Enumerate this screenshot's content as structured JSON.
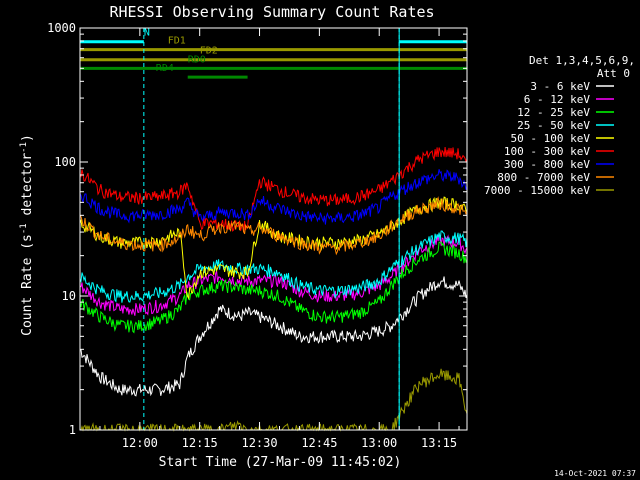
{
  "chart_data": {
    "type": "line",
    "title": "RHESSI Observing Summary Count Rates",
    "xlabel": "Start Time (27-Mar-09 11:45:02)",
    "ylabel": "Count Rate (s⁻¹ detector⁻¹)",
    "ylabel_parts": {
      "base": "Count Rate (s",
      "exp1": "-1",
      "mid": " detector",
      "exp2": "-1",
      "end": ")"
    },
    "y_scale": "log",
    "ylim": [
      1,
      1000
    ],
    "xlim_minutes": [
      0,
      97
    ],
    "x_ticks": [
      {
        "minutes": 15,
        "label": "12:00"
      },
      {
        "minutes": 30,
        "label": "12:15"
      },
      {
        "minutes": 45,
        "label": "12:30"
      },
      {
        "minutes": 60,
        "label": "12:45"
      },
      {
        "minutes": 75,
        "label": "13:00"
      },
      {
        "minutes": 90,
        "label": "13:15"
      }
    ],
    "y_ticks": [
      {
        "value": 1,
        "label": "1"
      },
      {
        "value": 10,
        "label": "10"
      },
      {
        "value": 100,
        "label": "100"
      },
      {
        "value": 1000,
        "label": "1000"
      }
    ],
    "legend_header": [
      "Det 1,3,4,5,6,9,",
      "Att 0"
    ],
    "legend_position": "right",
    "timestamp": "14-Oct-2021 07:37",
    "flags": [
      {
        "label": "N",
        "color": "#00ffff",
        "segments": [
          [
            0,
            16
          ],
          [
            80,
            97
          ]
        ],
        "value": 790
      },
      {
        "label": "FD1",
        "color": "#999900",
        "segments": [
          [
            0,
            97
          ]
        ],
        "value": 690
      },
      {
        "label": "FD2",
        "color": "#999900",
        "segments": [
          [
            0,
            97
          ]
        ],
        "value": 580
      },
      {
        "label": "RD0",
        "color": "#008800",
        "segments": [
          [
            0,
            97
          ]
        ],
        "value": 500
      },
      {
        "label": "RD4",
        "color": "#008800",
        "segments": [
          [
            27,
            42
          ]
        ],
        "value": 430
      }
    ],
    "night_times_minutes": [
      16,
      80
    ],
    "saa_edges_minutes": [
      0,
      80,
      97
    ],
    "x_minutes": [
      0,
      5,
      10,
      15,
      20,
      25,
      27,
      30,
      35,
      40,
      42,
      45,
      50,
      55,
      60,
      65,
      70,
      75,
      78,
      82,
      85,
      90,
      95,
      97
    ],
    "series": [
      {
        "name": "3 - 6 keV",
        "color": "#ffffff",
        "values": [
          4,
          2.5,
          2,
          2,
          2,
          2.2,
          3.5,
          5,
          8,
          7,
          7.5,
          7,
          6,
          5,
          5,
          5,
          5,
          5.5,
          6,
          8,
          10,
          13,
          12,
          10
        ]
      },
      {
        "name": "6 - 12 keV",
        "color": "#ff00ff",
        "values": [
          12,
          9,
          8,
          8,
          8.5,
          10,
          12,
          13,
          14,
          13,
          13,
          13,
          13,
          11,
          10,
          10,
          10.5,
          12,
          14,
          18,
          22,
          26,
          25,
          22
        ]
      },
      {
        "name": "12 - 25 keV",
        "color": "#00ff00",
        "values": [
          9,
          7,
          6,
          6,
          6.5,
          8,
          10,
          11,
          12,
          11.5,
          11,
          11,
          10,
          8,
          7,
          7,
          7.5,
          9,
          12,
          16,
          19,
          23,
          21,
          19
        ]
      },
      {
        "name": "25 - 50 keV",
        "color": "#00ffff",
        "values": [
          14,
          11,
          10,
          10,
          10.5,
          12,
          14,
          16,
          17,
          16,
          16,
          16,
          15,
          12,
          11,
          11,
          11.5,
          13,
          16,
          20,
          23,
          28,
          27,
          25
        ]
      },
      {
        "name": "50 - 100 keV",
        "color": "#ffff00",
        "values": [
          35,
          28,
          25,
          25,
          26,
          30,
          10,
          15,
          16,
          15,
          15,
          35,
          28,
          26,
          25,
          25,
          26,
          29,
          33,
          40,
          45,
          50,
          48,
          42
        ]
      },
      {
        "name": "100 - 300 keV",
        "color": "#ff0000",
        "values": [
          85,
          62,
          55,
          54,
          55,
          60,
          68,
          35,
          35,
          33,
          33,
          72,
          62,
          55,
          52,
          52,
          55,
          62,
          72,
          90,
          105,
          120,
          115,
          95
        ]
      },
      {
        "name": "300 - 800 keV",
        "color": "#0000ff",
        "values": [
          58,
          45,
          40,
          40,
          41,
          45,
          50,
          38,
          42,
          42,
          40,
          52,
          45,
          40,
          38,
          38,
          40,
          46,
          55,
          65,
          72,
          80,
          76,
          65
        ]
      },
      {
        "name": "800 - 7000 keV",
        "color": "#ff8800",
        "values": [
          38,
          28,
          25,
          24,
          24,
          27,
          32,
          28,
          33,
          33,
          30,
          32,
          28,
          25,
          23,
          23,
          25,
          28,
          33,
          40,
          44,
          49,
          45,
          40
        ]
      },
      {
        "name": "7000 - 15000 keV",
        "color": "#999900",
        "values": [
          1,
          1,
          1,
          1,
          1,
          1,
          1,
          1,
          1,
          1.1,
          1,
          1,
          1,
          1,
          1,
          1,
          1,
          1,
          1,
          1.6,
          2.2,
          2.6,
          2.4,
          1.3
        ]
      }
    ]
  }
}
